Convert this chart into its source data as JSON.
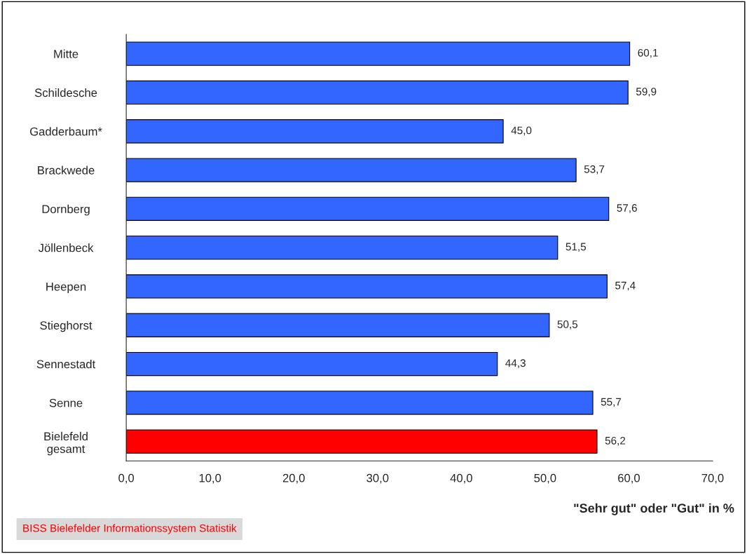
{
  "chart_data": {
    "type": "bar",
    "orientation": "horizontal",
    "xlabel": "\"Sehr gut\" oder \"Gut\" in %",
    "categories": [
      "Mitte",
      "Schildesche",
      "Gadderbaum*",
      "Brackwede",
      "Dornberg",
      "Jöllenbeck",
      "Heepen",
      "Stieghorst",
      "Sennestadt",
      "Senne",
      "Bielefeld\ngesamt"
    ],
    "values": [
      60.1,
      59.9,
      45.0,
      53.7,
      57.6,
      51.5,
      57.4,
      50.5,
      44.3,
      55.7,
      56.2
    ],
    "value_labels": [
      "60,1",
      "59,9",
      "45,0",
      "53,7",
      "57,6",
      "51,5",
      "57,4",
      "50,5",
      "44,3",
      "55,7",
      "56,2"
    ],
    "colors": [
      "#3366ff",
      "#3366ff",
      "#3366ff",
      "#3366ff",
      "#3366ff",
      "#3366ff",
      "#3366ff",
      "#3366ff",
      "#3366ff",
      "#3366ff",
      "#ff0000"
    ],
    "xlim": [
      0,
      70
    ],
    "xticks": [
      {
        "value": 0,
        "label": "0,0"
      },
      {
        "value": 10,
        "label": "10,0"
      },
      {
        "value": 20,
        "label": "20,0"
      },
      {
        "value": 30,
        "label": "30,0"
      },
      {
        "value": 40,
        "label": "40,0"
      },
      {
        "value": 50,
        "label": "50,0"
      },
      {
        "value": 60,
        "label": "60,0"
      },
      {
        "value": 70,
        "label": "70,0"
      }
    ],
    "grid": false,
    "legend": false,
    "annotations": [
      "BISS Bielefelder Informationssystem Statistik"
    ]
  }
}
